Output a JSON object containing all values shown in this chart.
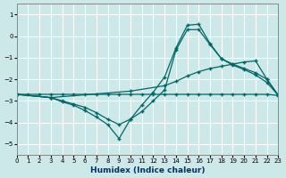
{
  "xlabel": "Humidex (Indice chaleur)",
  "bg_color": "#cce8e8",
  "grid_color": "#ffffff",
  "line_color": "#006666",
  "xlim": [
    0,
    23
  ],
  "ylim": [
    -5.5,
    1.5
  ],
  "yticks": [
    1,
    0,
    -1,
    -2,
    -3,
    -4,
    -5
  ],
  "xticks": [
    0,
    1,
    2,
    3,
    4,
    5,
    6,
    7,
    8,
    9,
    10,
    11,
    12,
    13,
    14,
    15,
    16,
    17,
    18,
    19,
    20,
    21,
    22,
    23
  ],
  "line1_x": [
    0,
    1,
    2,
    3,
    4,
    5,
    6,
    7,
    8,
    9,
    10,
    11,
    12,
    13,
    14,
    15,
    16,
    17,
    18,
    19,
    20,
    21,
    22,
    23
  ],
  "line1_y": [
    -2.7,
    -2.7,
    -2.7,
    -2.7,
    -2.7,
    -2.7,
    -2.7,
    -2.7,
    -2.7,
    -2.7,
    -2.7,
    -2.7,
    -2.7,
    -2.7,
    -2.7,
    -2.7,
    -2.7,
    -2.7,
    -2.7,
    -2.7,
    -2.7,
    -2.7,
    -2.7,
    -2.75
  ],
  "line2_x": [
    0,
    3,
    10,
    13,
    14,
    15,
    16,
    17,
    18,
    19,
    20,
    21,
    22,
    23
  ],
  "line2_y": [
    -2.7,
    -2.85,
    -2.55,
    -2.3,
    -2.1,
    -1.85,
    -1.65,
    -1.5,
    -1.4,
    -1.3,
    -1.2,
    -1.15,
    -2.0,
    -2.75
  ],
  "line3_x": [
    0,
    3,
    4,
    5,
    6,
    7,
    8,
    9,
    10,
    11,
    12,
    13,
    14,
    15,
    16,
    17,
    18,
    19,
    20,
    21,
    22,
    23
  ],
  "line3_y": [
    -2.7,
    -2.85,
    -3.0,
    -3.15,
    -3.3,
    -3.55,
    -3.85,
    -4.1,
    -3.85,
    -3.5,
    -3.0,
    -2.5,
    -0.65,
    0.3,
    0.3,
    -0.4,
    -1.05,
    -1.3,
    -1.5,
    -1.7,
    -2.0,
    -2.75
  ],
  "line4_x": [
    0,
    3,
    4,
    5,
    6,
    7,
    8,
    9,
    10,
    11,
    12,
    13,
    14,
    15,
    16,
    17,
    18,
    19,
    20,
    21,
    22,
    23
  ],
  "line4_y": [
    -2.7,
    -2.85,
    -3.05,
    -3.2,
    -3.45,
    -3.75,
    -4.1,
    -4.75,
    -3.85,
    -3.2,
    -2.6,
    -1.9,
    -0.55,
    0.5,
    0.55,
    -0.35,
    -1.05,
    -1.35,
    -1.55,
    -1.8,
    -2.15,
    -2.75
  ]
}
